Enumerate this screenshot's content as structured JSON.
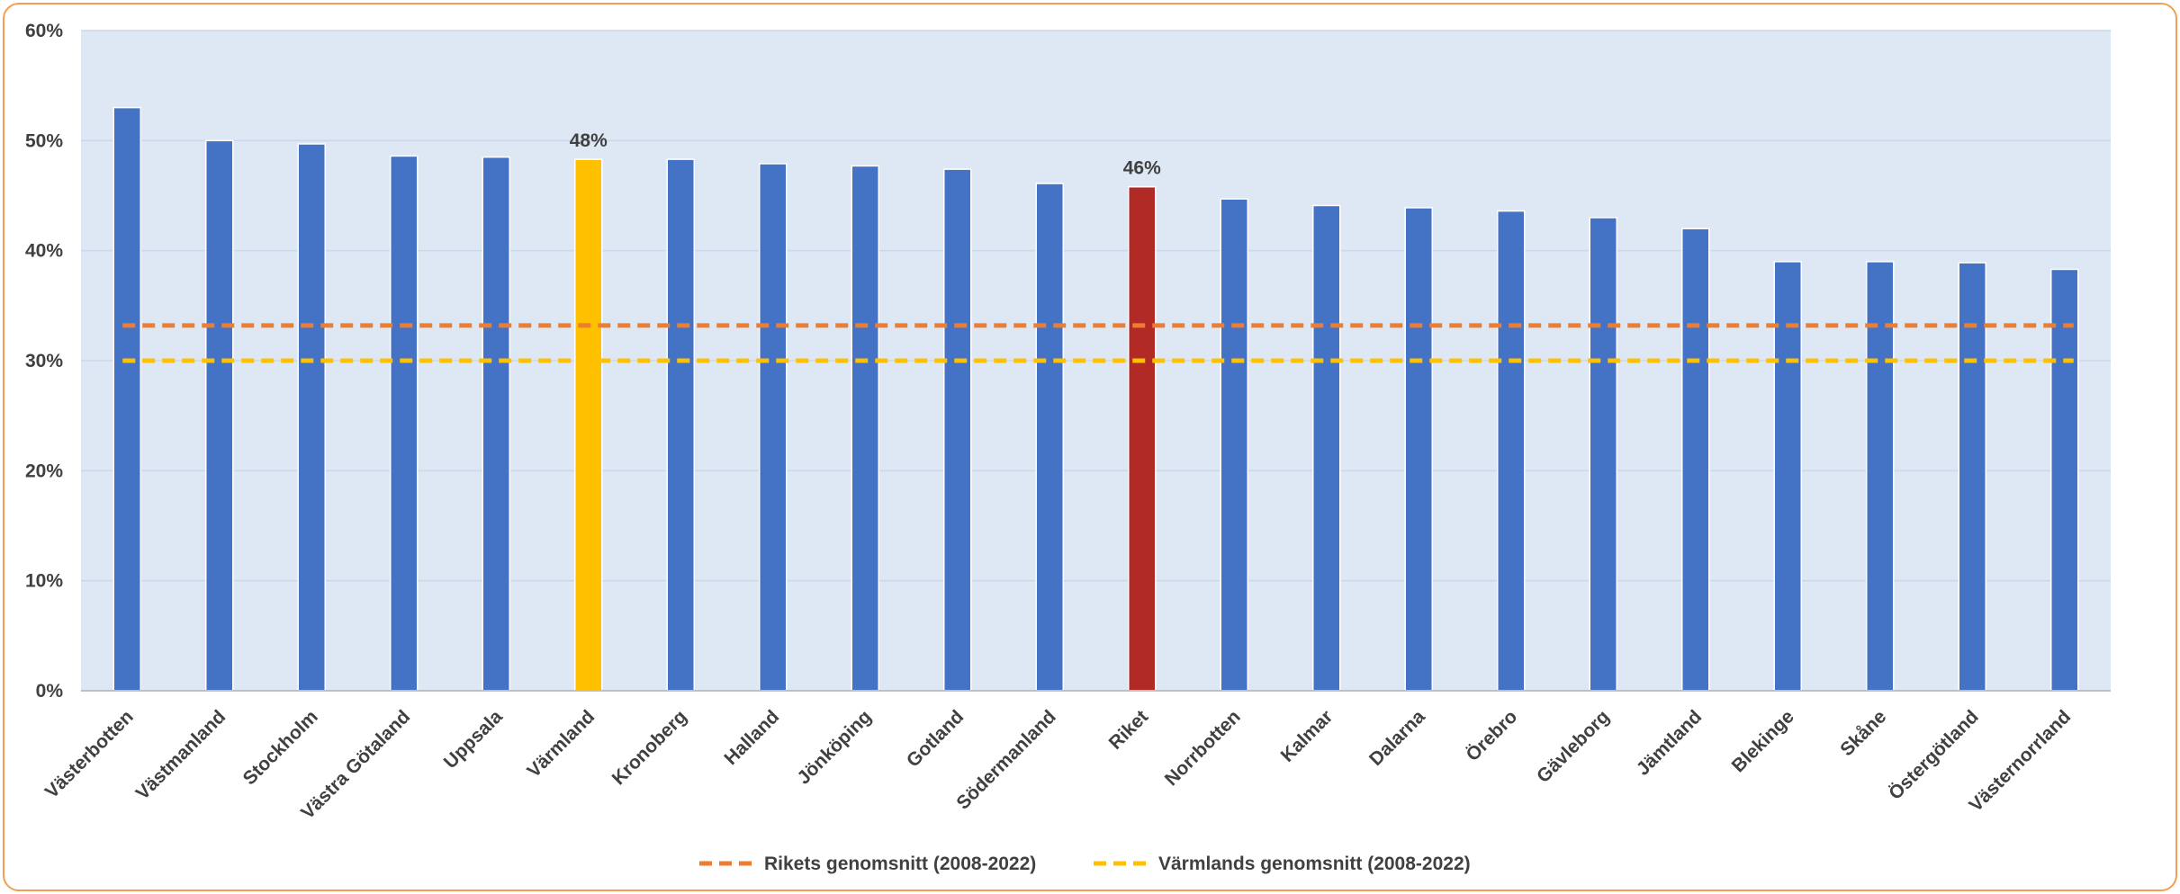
{
  "chart_data": {
    "type": "bar",
    "categories": [
      "Västerbotten",
      "Västmanland",
      "Stockholm",
      "Västra Götaland",
      "Uppsala",
      "Värmland",
      "Kronoberg",
      "Halland",
      "Jönköping",
      "Gotland",
      "Södermanland",
      "Riket",
      "Norrbotten",
      "Kalmar",
      "Dalarna",
      "Örebro",
      "Gävleborg",
      "Jämtland",
      "Blekinge",
      "Skåne",
      "Östergötland",
      "Västernorrland"
    ],
    "values": [
      0.53,
      0.5,
      0.497,
      0.486,
      0.485,
      0.483,
      0.483,
      0.479,
      0.477,
      0.474,
      0.461,
      0.458,
      0.447,
      0.441,
      0.439,
      0.436,
      0.43,
      0.42,
      0.39,
      0.39,
      0.389,
      0.383
    ],
    "bar_colors": [
      "#4472C4",
      "#4472C4",
      "#4472C4",
      "#4472C4",
      "#4472C4",
      "#FFC000",
      "#4472C4",
      "#4472C4",
      "#4472C4",
      "#4472C4",
      "#4472C4",
      "#B22A25",
      "#4472C4",
      "#4472C4",
      "#4472C4",
      "#4472C4",
      "#4472C4",
      "#4472C4",
      "#4472C4",
      "#4472C4",
      "#4472C4",
      "#4472C4"
    ],
    "data_labels": [
      {
        "category": "Värmland",
        "text": "48%"
      },
      {
        "category": "Riket",
        "text": "46%"
      }
    ],
    "reference_lines": [
      {
        "name": "Rikets genomsnitt (2008-2022)",
        "value": 0.332,
        "color": "#ED7D31",
        "style": "dashed"
      },
      {
        "name": "Värmlands genomsnitt (2008-2022)",
        "value": 0.3,
        "color": "#FFC000",
        "style": "dashed"
      }
    ],
    "ylim": [
      0,
      0.6
    ],
    "yticks": [
      "0%",
      "10%",
      "20%",
      "30%",
      "40%",
      "50%",
      "60%"
    ],
    "grid": true,
    "plot_background": "#DEE8F4",
    "gridline_color": "#C9D7EA",
    "legend_position": "bottom-center",
    "title": "",
    "xlabel": "",
    "ylabel": ""
  }
}
